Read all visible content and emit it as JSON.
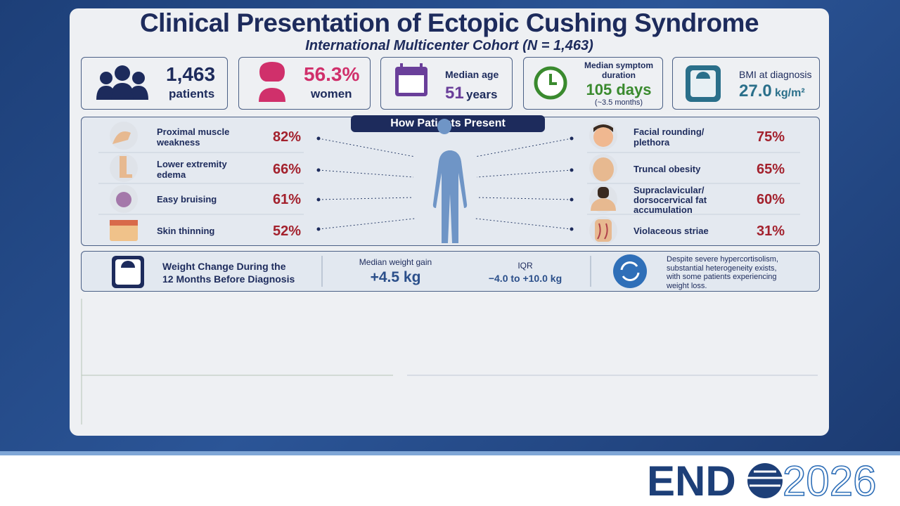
{
  "header": {
    "title": "Clinical Presentation of Ectopic Cushing Syndrome",
    "subtitle": "International Multicenter Cohort (N = 1,463)"
  },
  "stats": [
    {
      "value": "1,463",
      "label": "patients"
    },
    {
      "value": "56.3%",
      "label": "women"
    },
    {
      "label": "Median age",
      "value": "51",
      "unit": "years"
    },
    {
      "label": "Median symptom duration",
      "value": "105 days",
      "note": "(~3.5 months)"
    },
    {
      "label": "BMI at diagnosis",
      "value": "27.0",
      "unit": "kg/m²"
    }
  ],
  "presentation": {
    "title": "How Patients Present",
    "left": [
      {
        "label": "Proximal muscle weakness",
        "value": "82%"
      },
      {
        "label": "Lower extremity edema",
        "value": "66%"
      },
      {
        "label": "Easy bruising",
        "value": "61%"
      },
      {
        "label": "Skin thinning",
        "value": "52%"
      }
    ],
    "right": [
      {
        "label": "Facial rounding/ plethora",
        "value": "75%"
      },
      {
        "label": "Truncal obesity",
        "value": "65%"
      },
      {
        "label": "Supraclavicular/ dorsocervical fat accumulation",
        "value": "60%"
      },
      {
        "label": "Violaceous striae",
        "value": "31%"
      }
    ]
  },
  "weight": {
    "title": "Weight Change During the 12 Months Before Diagnosis",
    "gain_label": "Median weight gain",
    "gain": "+4.5 kg",
    "iqr_label": "IQR",
    "iqr": "−4.0 to +10.0 kg",
    "note": "Despite severe hypercortisolism, substantial heterogeneity exists, with some patients experiencing weight loss."
  },
  "logo": {
    "brand": "END",
    "year": "2026"
  }
}
